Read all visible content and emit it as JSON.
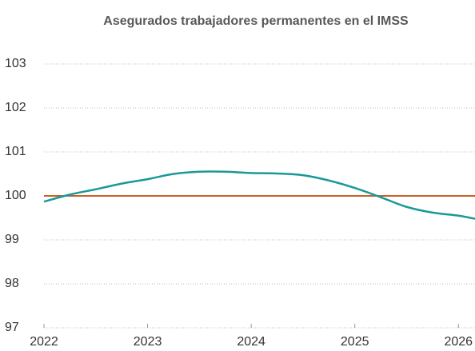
{
  "chart_data": {
    "type": "line",
    "title": "Asegurados trabajadores permanentes en el IMSS",
    "x": [
      2022.0,
      2022.25,
      2022.5,
      2022.75,
      2023.0,
      2023.25,
      2023.5,
      2023.75,
      2024.0,
      2024.25,
      2024.5,
      2024.75,
      2025.0,
      2025.25,
      2025.5,
      2025.75,
      2026.0,
      2026.16
    ],
    "series": [
      {
        "color": "#1a9a98",
        "values": [
          99.87,
          100.03,
          100.15,
          100.28,
          100.38,
          100.5,
          100.55,
          100.55,
          100.52,
          100.51,
          100.47,
          100.35,
          100.18,
          99.97,
          99.75,
          99.62,
          99.55,
          99.48
        ]
      }
    ],
    "hline": {
      "value": 100,
      "color": "#c8602a"
    },
    "xlim": [
      2022,
      2026.16
    ],
    "xticks": [
      2022,
      2023,
      2024,
      2025,
      2026
    ],
    "ylim": [
      97,
      103
    ],
    "yticks": [
      97,
      98,
      99,
      100,
      101,
      102,
      103
    ],
    "grid": true
  }
}
